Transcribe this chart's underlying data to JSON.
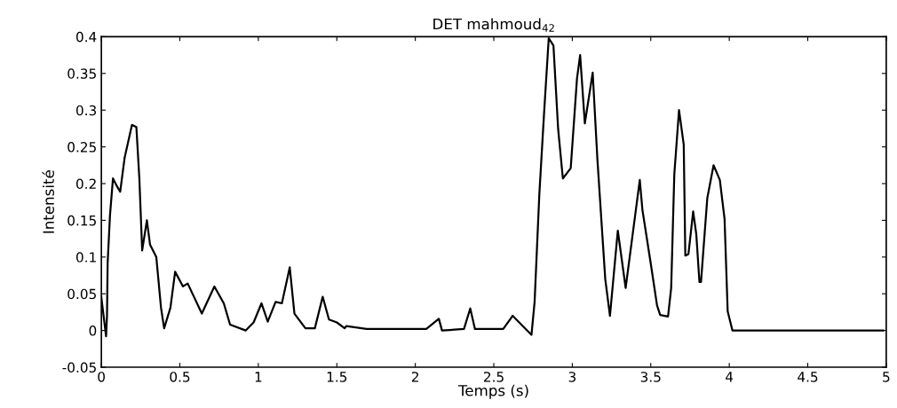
{
  "chart_data": {
    "type": "line",
    "title": "DET mahmoud$_{42}$",
    "xlabel": "Temps (s)",
    "ylabel": "Intensité",
    "xlim": [
      0,
      5
    ],
    "ylim": [
      -0.05,
      0.4
    ],
    "xticks": [
      0,
      0.5,
      1,
      1.5,
      2,
      2.5,
      3,
      3.5,
      4,
      4.5,
      5
    ],
    "yticks": [
      -0.05,
      0,
      0.05,
      0.1,
      0.15,
      0.2,
      0.25,
      0.3,
      0.35,
      0.4
    ],
    "grid": false,
    "legend": false,
    "marker": "none",
    "line_style": "solid",
    "series": [
      {
        "color": "#000000",
        "x": [
          0,
          0.03,
          0.036,
          0.04,
          0.055,
          0.074,
          0.103,
          0.12,
          0.148,
          0.195,
          0.223,
          0.242,
          0.26,
          0.29,
          0.31,
          0.35,
          0.38,
          0.4,
          0.44,
          0.47,
          0.52,
          0.55,
          0.64,
          0.72,
          0.78,
          0.82,
          0.92,
          0.97,
          1.02,
          1.06,
          1.11,
          1.15,
          1.2,
          1.23,
          1.3,
          1.36,
          1.41,
          1.45,
          1.5,
          1.55,
          1.56,
          1.69,
          1.88,
          2.07,
          2.15,
          2.17,
          2.31,
          2.35,
          2.38,
          2.56,
          2.62,
          2.74,
          2.76,
          2.79,
          2.82,
          2.85,
          2.88,
          2.91,
          2.94,
          2.99,
          3.03,
          3.05,
          3.08,
          3.13,
          3.16,
          3.21,
          3.24,
          3.29,
          3.34,
          3.43,
          3.447,
          3.5,
          3.54,
          3.56,
          3.61,
          3.63,
          3.65,
          3.68,
          3.71,
          3.72,
          3.74,
          3.77,
          3.79,
          3.81,
          3.82,
          3.86,
          3.9,
          3.94,
          3.97,
          3.99,
          4.02,
          4.98
        ],
        "values": [
          0.045,
          -0.008,
          0.02,
          0.092,
          0.157,
          0.207,
          0.195,
          0.189,
          0.235,
          0.28,
          0.277,
          0.207,
          0.109,
          0.15,
          0.117,
          0.1,
          0.031,
          0.003,
          0.031,
          0.08,
          0.06,
          0.064,
          0.023,
          0.06,
          0.037,
          0.008,
          0,
          0.011,
          0.037,
          0.012,
          0.039,
          0.037,
          0.086,
          0.023,
          0.003,
          0.003,
          0.046,
          0.015,
          0.011,
          0.003,
          0.006,
          0.002,
          0.002,
          0.002,
          0.016,
          0,
          0.002,
          0.03,
          0.002,
          0.002,
          0.02,
          -0.006,
          0.039,
          0.185,
          0.295,
          0.398,
          0.388,
          0.274,
          0.207,
          0.221,
          0.343,
          0.375,
          0.282,
          0.351,
          0.233,
          0.07,
          0.02,
          0.136,
          0.058,
          0.205,
          0.164,
          0.091,
          0.034,
          0.021,
          0.019,
          0.058,
          0.213,
          0.3,
          0.253,
          0.102,
          0.104,
          0.162,
          0.131,
          0.066,
          0.066,
          0.18,
          0.225,
          0.205,
          0.152,
          0.026,
          0,
          0
        ]
      }
    ]
  }
}
